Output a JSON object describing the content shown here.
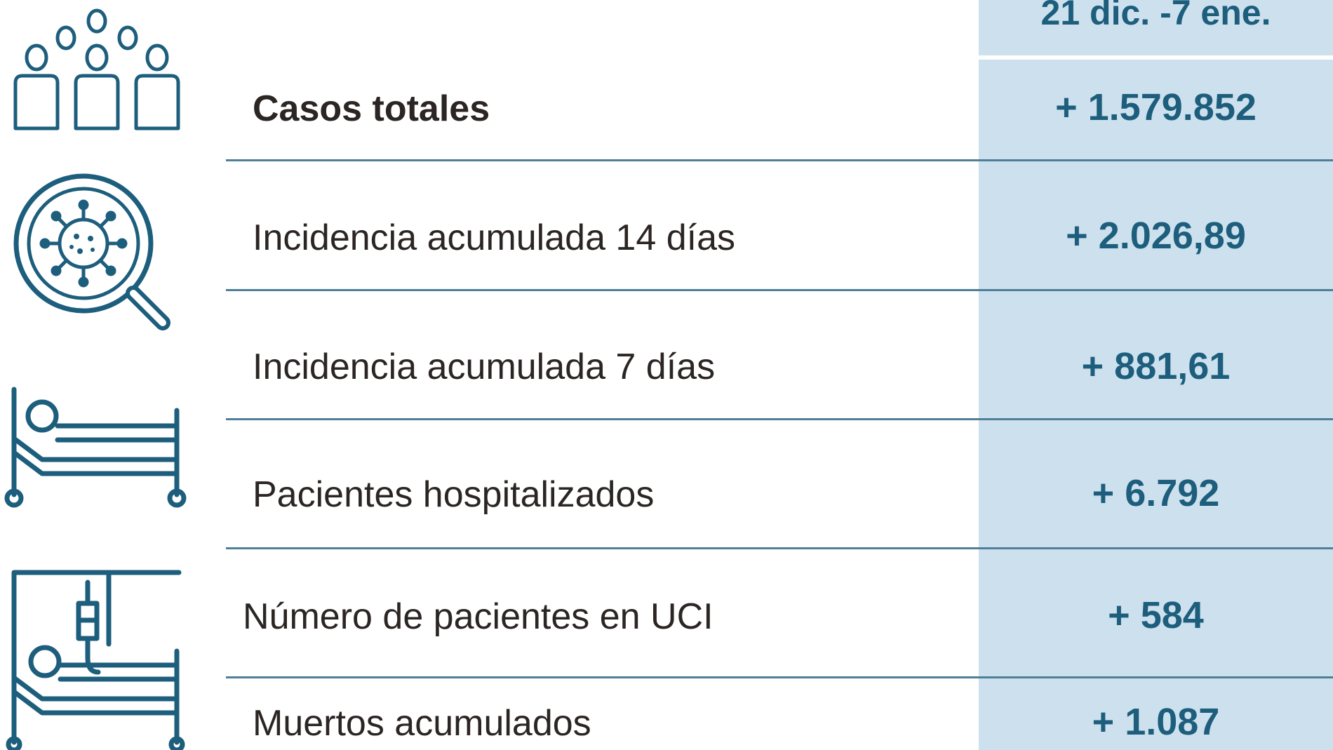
{
  "table": {
    "header": "21 dic. -7 ene.",
    "rows": [
      {
        "label": "Casos totales",
        "value": "+ 1.579.852",
        "icon": "people-group-icon"
      },
      {
        "label": "Incidencia acumulada 14 días",
        "value": "+ 2.026,89",
        "icon": "virus-magnifier-icon"
      },
      {
        "label": "Incidencia acumulada 7 días",
        "value": "+ 881,61",
        "icon": ""
      },
      {
        "label": "Pacientes hospitalizados",
        "value": "+ 6.792",
        "icon": "hospital-bed-icon"
      },
      {
        "label": "Número de pacientes en UCI",
        "value": "+ 584",
        "icon": "icu-bed-iv-icon"
      },
      {
        "label": "Muertos acumulados",
        "value": "+ 1.087",
        "icon": ""
      }
    ]
  },
  "colors": {
    "accent": "#1d5e7d",
    "value_column_bg": "#cde0ed",
    "label_text": "#2b2523",
    "divider": "#4f7f98"
  }
}
